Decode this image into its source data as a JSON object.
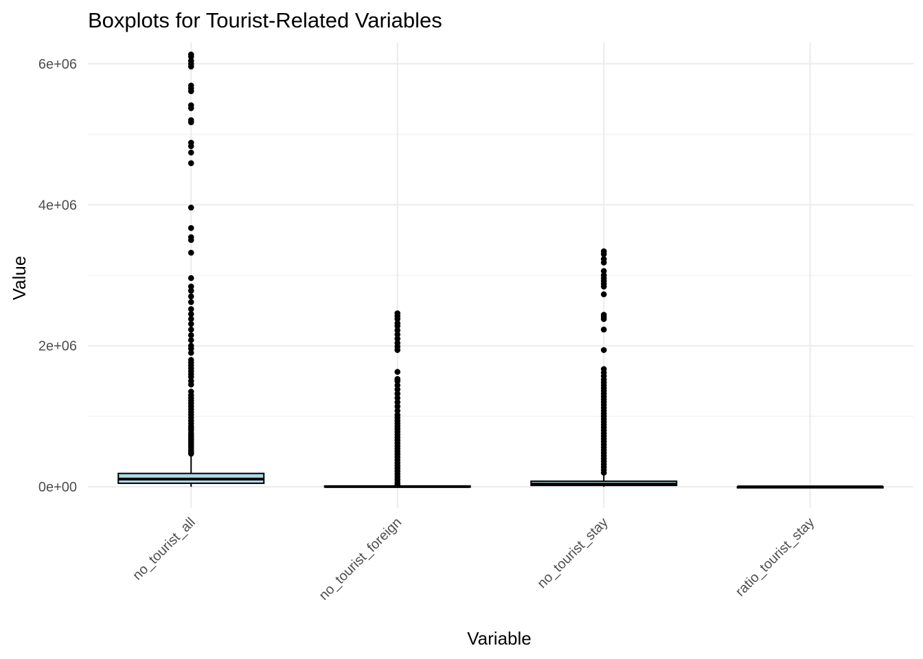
{
  "chart_data": {
    "type": "boxplot",
    "title": "Boxplots for Tourist-Related Variables",
    "xlabel": "Variable",
    "ylabel": "Value",
    "ylim": [
      -300000,
      6300000
    ],
    "y_ticks": [
      {
        "value": 0,
        "label": "0e+00"
      },
      {
        "value": 2000000,
        "label": "2e+06"
      },
      {
        "value": 4000000,
        "label": "4e+06"
      },
      {
        "value": 6000000,
        "label": "6e+06"
      }
    ],
    "y_minor_ticks": [
      1000000,
      3000000,
      5000000
    ],
    "grid": true,
    "box_fill": "#add8e6",
    "outlier_color": "#000000",
    "categories": [
      "no_tourist_all",
      "no_tourist_foreign",
      "no_tourist_stay",
      "ratio_tourist_stay"
    ],
    "boxes": [
      {
        "name": "no_tourist_all",
        "min": 0,
        "q1": 50000,
        "median": 110000,
        "q3": 190000,
        "whisker_high": 470000,
        "outliers": [
          470000,
          500000,
          520000,
          550000,
          580000,
          610000,
          640000,
          670000,
          700000,
          730000,
          760000,
          800000,
          830000,
          860000,
          900000,
          940000,
          980000,
          1020000,
          1060000,
          1100000,
          1140000,
          1180000,
          1220000,
          1260000,
          1300000,
          1350000,
          1450000,
          1500000,
          1560000,
          1600000,
          1640000,
          1680000,
          1720000,
          1760000,
          1800000,
          1900000,
          1960000,
          2000000,
          2080000,
          2150000,
          2230000,
          2310000,
          2380000,
          2450000,
          2520000,
          2620000,
          2700000,
          2780000,
          2840000,
          2960000,
          3320000,
          3500000,
          3540000,
          3670000,
          3960000,
          4590000,
          4740000,
          4830000,
          4880000,
          5170000,
          5200000,
          5370000,
          5410000,
          5610000,
          5650000,
          5690000,
          5960000,
          6000000,
          6040000,
          6100000,
          6130000
        ]
      },
      {
        "name": "no_tourist_foreign",
        "min": 0,
        "q1": 0,
        "median": 3000,
        "q3": 12000,
        "whisker_high": 30000,
        "outliers": [
          30000,
          60000,
          100000,
          140000,
          180000,
          220000,
          260000,
          300000,
          340000,
          380000,
          420000,
          460000,
          500000,
          540000,
          580000,
          620000,
          660000,
          700000,
          740000,
          780000,
          820000,
          860000,
          900000,
          940000,
          980000,
          1020000,
          1080000,
          1140000,
          1200000,
          1260000,
          1320000,
          1380000,
          1440000,
          1500000,
          1530000,
          1630000,
          1940000,
          1990000,
          2040000,
          2100000,
          2160000,
          2220000,
          2280000,
          2320000,
          2380000,
          2420000,
          2460000
        ]
      },
      {
        "name": "no_tourist_stay",
        "min": 0,
        "q1": 20000,
        "median": 40000,
        "q3": 80000,
        "whisker_high": 160000,
        "outliers": [
          200000,
          240000,
          280000,
          320000,
          360000,
          400000,
          440000,
          480000,
          520000,
          560000,
          600000,
          640000,
          680000,
          720000,
          760000,
          800000,
          840000,
          880000,
          920000,
          960000,
          1000000,
          1040000,
          1080000,
          1120000,
          1160000,
          1200000,
          1240000,
          1280000,
          1320000,
          1360000,
          1400000,
          1440000,
          1480000,
          1520000,
          1570000,
          1620000,
          1670000,
          1940000,
          2230000,
          2380000,
          2410000,
          2440000,
          2730000,
          2840000,
          2880000,
          2920000,
          2960000,
          3000000,
          3060000,
          3180000,
          3230000,
          3300000,
          3340000
        ]
      },
      {
        "name": "ratio_tourist_stay",
        "min": 0,
        "q1": 0,
        "median": 0,
        "q3": 1,
        "whisker_high": 2,
        "outliers": []
      }
    ]
  }
}
